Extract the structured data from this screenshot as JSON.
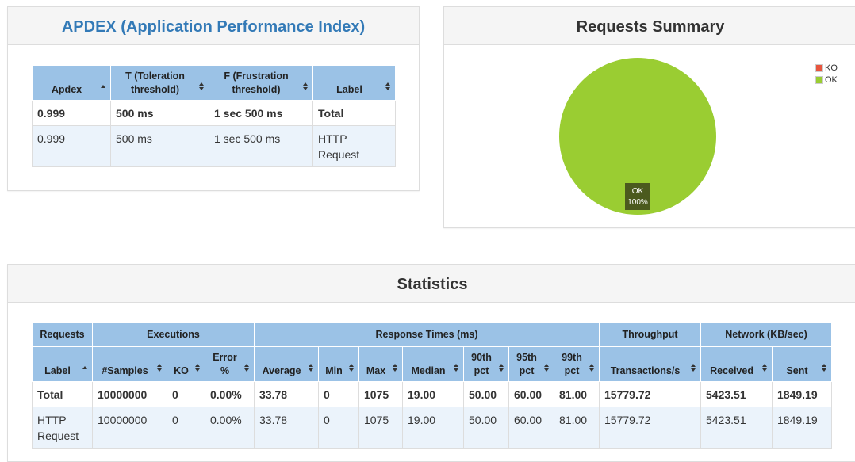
{
  "apdex": {
    "title": "APDEX (Application Performance Index)",
    "headers": [
      "Apdex",
      "T (Toleration threshold)",
      "F (Frustration threshold)",
      "Label"
    ],
    "rows": [
      [
        "0.999",
        "500 ms",
        "1 sec 500 ms",
        "Total"
      ],
      [
        "0.999",
        "500 ms",
        "1 sec 500 ms",
        "HTTP Request"
      ]
    ]
  },
  "summary": {
    "title": "Requests Summary",
    "legend": [
      {
        "label": "KO",
        "color": "#e8553e"
      },
      {
        "label": "OK",
        "color": "#9acd32"
      }
    ],
    "pie_label": "OK",
    "pie_percent": "100%"
  },
  "chart_data": {
    "type": "pie",
    "title": "Requests Summary",
    "slices": [
      {
        "label": "KO",
        "value": 0,
        "color": "#e8553e"
      },
      {
        "label": "OK",
        "value": 100,
        "color": "#9acd32"
      }
    ]
  },
  "statistics": {
    "title": "Statistics",
    "groups": [
      "Requests",
      "Executions",
      "Response Times (ms)",
      "Throughput",
      "Network (KB/sec)"
    ],
    "headers": [
      "Label",
      "#Samples",
      "KO",
      "Error %",
      "Average",
      "Min",
      "Max",
      "Median",
      "90th pct",
      "95th pct",
      "99th pct",
      "Transactions/s",
      "Received",
      "Sent"
    ],
    "rows": [
      [
        "Total",
        "10000000",
        "0",
        "0.00%",
        "33.78",
        "0",
        "1075",
        "19.00",
        "50.00",
        "60.00",
        "81.00",
        "15779.72",
        "5423.51",
        "1849.19"
      ],
      [
        "HTTP Request",
        "10000000",
        "0",
        "0.00%",
        "33.78",
        "0",
        "1075",
        "19.00",
        "50.00",
        "60.00",
        "81.00",
        "15779.72",
        "5423.51",
        "1849.19"
      ]
    ]
  },
  "colors": {
    "header_bg": "#9bc2e6",
    "row_bg": "#ebf3fb",
    "ok": "#9acd32",
    "ko": "#e8553e"
  }
}
